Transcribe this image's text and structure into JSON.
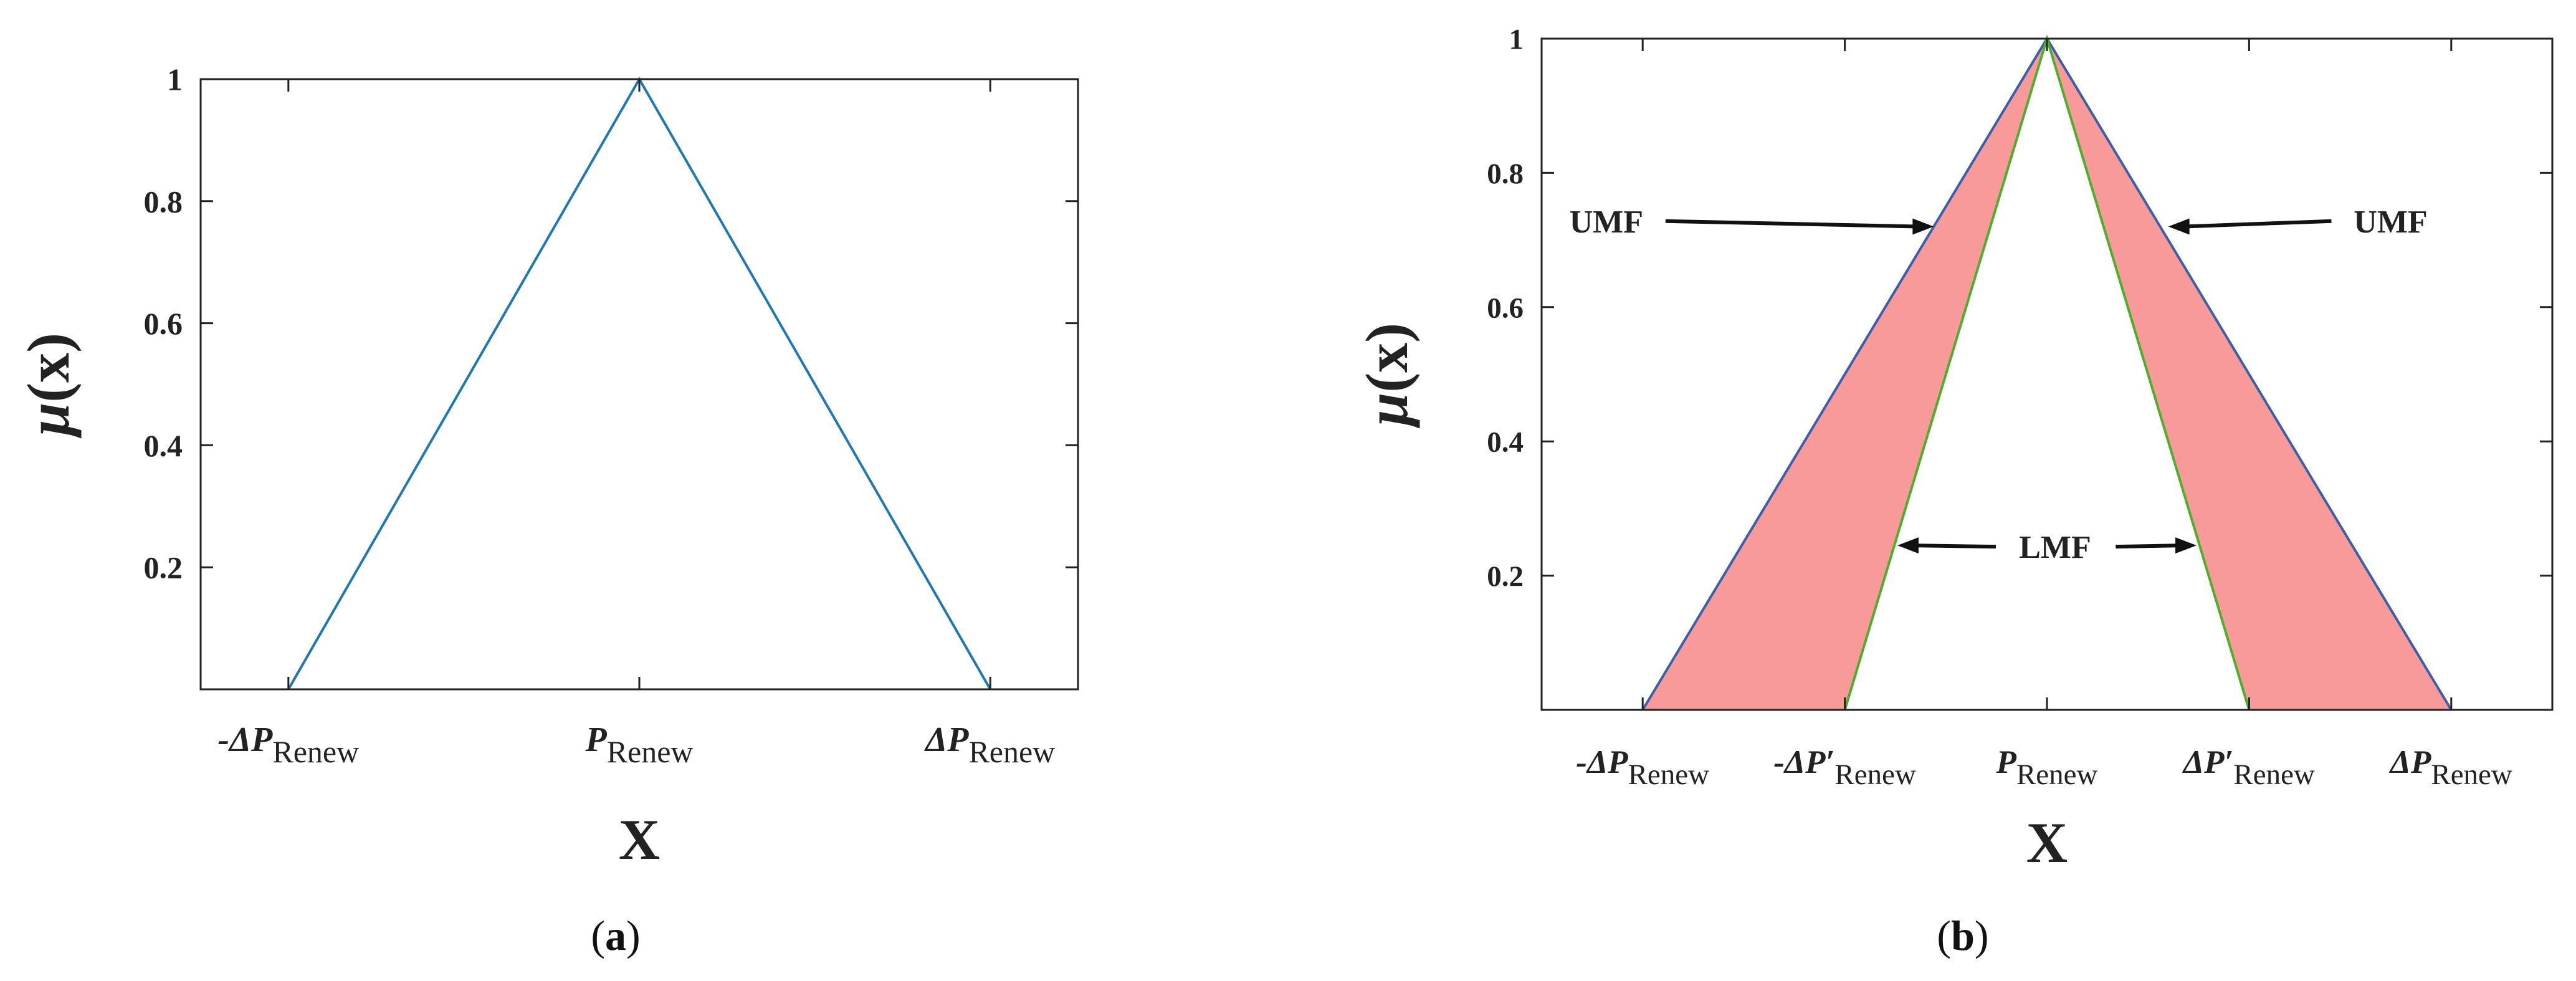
{
  "chart_data": [
    {
      "panel_label": "(a)",
      "panel_letter": "a",
      "type": "line",
      "xlabel": "X",
      "ylabel": "μ(x)",
      "x_ticks": [
        {
          "x": -1,
          "prefix": "-",
          "symbol": "ΔP",
          "sub": "Renew"
        },
        {
          "x": 0,
          "prefix": "",
          "symbol": "P",
          "sub": "Renew"
        },
        {
          "x": 1,
          "prefix": "",
          "symbol": "ΔP",
          "sub": "Renew"
        }
      ],
      "y_ticks": [
        "0.2",
        "0.4",
        "0.6",
        "0.8",
        "1"
      ],
      "y_tick_values": [
        0.2,
        0.4,
        0.6,
        0.8,
        1
      ],
      "xlim": [
        -1.25,
        1.25
      ],
      "ylim": [
        0,
        1
      ],
      "series": [
        {
          "x": [
            -1,
            0,
            1
          ],
          "y": [
            0,
            1,
            0
          ],
          "color": "#1f77b4"
        }
      ]
    },
    {
      "panel_label": "(b)",
      "panel_letter": "b",
      "type": "area",
      "xlabel": "X",
      "ylabel": "μ(x)",
      "x_ticks": [
        {
          "x": -1,
          "prefix": "-",
          "symbol": "ΔP",
          "sub": "Renew"
        },
        {
          "x": -0.5,
          "prefix": "-",
          "symbol": "ΔP′",
          "sub": "Renew"
        },
        {
          "x": 0,
          "prefix": "",
          "symbol": "P",
          "sub": "Renew"
        },
        {
          "x": 0.5,
          "prefix": "",
          "symbol": "ΔP′",
          "sub": "Renew"
        },
        {
          "x": 1,
          "prefix": "",
          "symbol": "ΔP",
          "sub": "Renew"
        }
      ],
      "y_ticks": [
        "0.2",
        "0.4",
        "0.6",
        "0.8",
        "1"
      ],
      "y_tick_values": [
        0.2,
        0.4,
        0.6,
        0.8,
        1
      ],
      "xlim": [
        -1.25,
        1.25
      ],
      "ylim": [
        0,
        1
      ],
      "series": [
        {
          "x": [
            -1,
            0,
            1
          ],
          "y": [
            0,
            1,
            0
          ],
          "color": "#3a5ea8"
        },
        {
          "x": [
            -0.5,
            0,
            0.5
          ],
          "y": [
            0,
            1,
            0
          ],
          "color": "#4caf29"
        }
      ],
      "fill_color": "#f99a9a",
      "annotations": [
        {
          "text": "UMF",
          "text_x": -1.09,
          "text_y": 0.73,
          "arrow_to_x": -0.28,
          "arrow_to_y": 0.72,
          "side": "left"
        },
        {
          "text": "UMF",
          "text_x": 0.85,
          "text_y": 0.73,
          "arrow_to_x": 0.3,
          "arrow_to_y": 0.72,
          "side": "right"
        },
        {
          "text": "LMF",
          "text_x": 0.02,
          "text_y": 0.245,
          "arrow_to_x": -0.37,
          "arrow_to_y": 0.245,
          "side": "center-left"
        },
        {
          "text": "",
          "text_x": 0.17,
          "text_y": 0.245,
          "arrow_to_x": 0.37,
          "arrow_to_y": 0.245,
          "side": "center-right"
        }
      ]
    }
  ]
}
